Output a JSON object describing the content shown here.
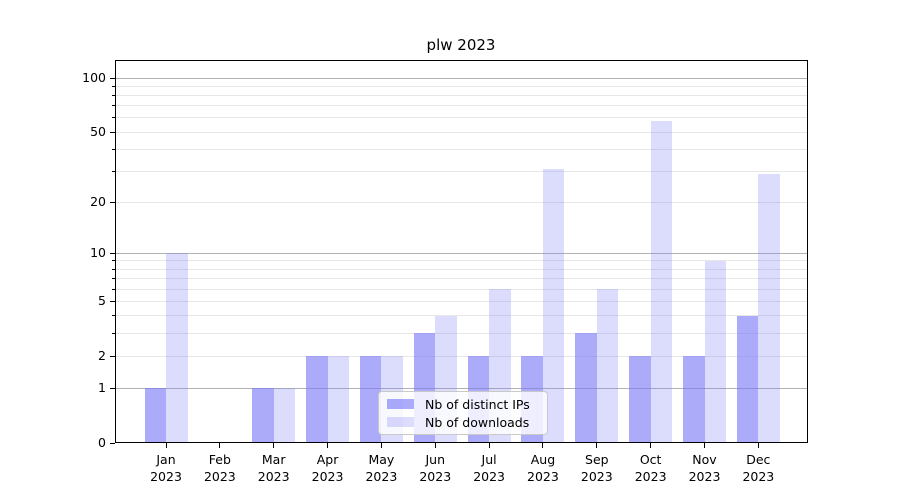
{
  "title": "plw 2023",
  "legend": {
    "items": [
      {
        "label": "Nb of distinct IPs",
        "swatch": "dark"
      },
      {
        "label": "Nb of downloads",
        "swatch": "light"
      }
    ]
  },
  "colors": {
    "bar_dark": "rgba(120,120,247,0.62)",
    "bar_light": "rgba(120,120,247,0.26)",
    "major_grid": "#b2b2b2",
    "minor_grid": "#e7e7e7",
    "axis": "#000000"
  },
  "chart_data": {
    "type": "bar",
    "title": "plw 2023",
    "categories": [
      {
        "month": "Jan",
        "year": "2023"
      },
      {
        "month": "Feb",
        "year": "2023"
      },
      {
        "month": "Mar",
        "year": "2023"
      },
      {
        "month": "Apr",
        "year": "2023"
      },
      {
        "month": "May",
        "year": "2023"
      },
      {
        "month": "Jun",
        "year": "2023"
      },
      {
        "month": "Jul",
        "year": "2023"
      },
      {
        "month": "Aug",
        "year": "2023"
      },
      {
        "month": "Sep",
        "year": "2023"
      },
      {
        "month": "Oct",
        "year": "2023"
      },
      {
        "month": "Nov",
        "year": "2023"
      },
      {
        "month": "Dec",
        "year": "2023"
      }
    ],
    "series": [
      {
        "name": "Nb of distinct IPs",
        "color": "rgba(120,120,247,0.62)",
        "values": [
          1,
          0,
          1,
          2,
          2,
          3,
          2,
          2,
          3,
          2,
          2,
          4
        ]
      },
      {
        "name": "Nb of downloads",
        "color": "rgba(120,120,247,0.26)",
        "values": [
          10,
          0,
          1,
          2,
          2,
          4,
          6,
          31,
          6,
          58,
          9,
          29
        ]
      }
    ],
    "yscale": "log1p",
    "ylim": [
      0,
      126
    ],
    "yticks": [
      {
        "value": 0,
        "label": "0"
      },
      {
        "value": 1,
        "label": "1"
      },
      {
        "value": 2,
        "label": "2"
      },
      {
        "value": 5,
        "label": "5"
      },
      {
        "value": 10,
        "label": "10"
      },
      {
        "value": 20,
        "label": "20"
      },
      {
        "value": 50,
        "label": "50"
      },
      {
        "value": 100,
        "label": "100"
      }
    ],
    "major_gridlines": [
      1,
      10,
      100
    ],
    "minor_gridlines": [
      3,
      4,
      6,
      7,
      8,
      9,
      30,
      40,
      60,
      70,
      80,
      90
    ],
    "grid": true,
    "legend_position": "lower center"
  }
}
